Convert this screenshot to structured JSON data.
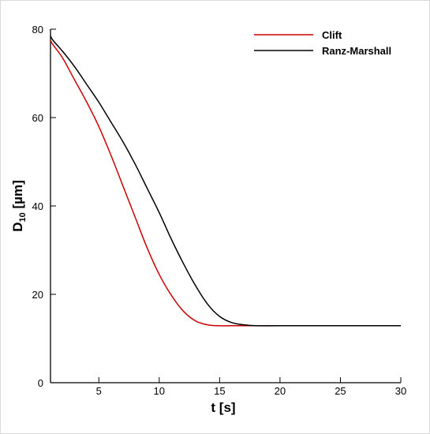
{
  "chart_data": {
    "type": "line",
    "xlabel": "t [s]",
    "ylabel_main": "D",
    "ylabel_sub": "10",
    "ylabel_unit": " [µm]",
    "xlim": [
      1,
      30
    ],
    "ylim": [
      0,
      80
    ],
    "xticks": [
      5,
      10,
      15,
      20,
      25,
      30
    ],
    "yticks": [
      0,
      20,
      40,
      60,
      80
    ],
    "xtick_labels": [
      "5",
      "10",
      "15",
      "20",
      "25",
      "30"
    ],
    "ytick_labels": [
      "0",
      "20",
      "40",
      "60",
      "80"
    ],
    "grid": false,
    "legend_position": "top-right",
    "series": [
      {
        "name": "Clift",
        "color": "#cc0000",
        "x": [
          1.0,
          1.2,
          2,
          3,
          4,
          5,
          6,
          7,
          8,
          9,
          10,
          11,
          12,
          13,
          14,
          15,
          16,
          17,
          18,
          20,
          25,
          30
        ],
        "y": [
          77.5,
          76.5,
          73.5,
          68.5,
          63.5,
          58,
          51.5,
          44.5,
          37.5,
          30.5,
          24.5,
          19.8,
          16.2,
          14.0,
          13.1,
          12.9,
          12.9,
          12.9,
          12.9,
          12.9,
          12.9,
          12.9
        ]
      },
      {
        "name": "Ranz-Marshall",
        "color": "#000000",
        "x": [
          1.0,
          1.2,
          2,
          3,
          4,
          5,
          6,
          7,
          8,
          9,
          10,
          11,
          12,
          13,
          14,
          15,
          16,
          17,
          18,
          20,
          25,
          30
        ],
        "y": [
          78.5,
          77.5,
          75.0,
          71.5,
          67.5,
          63.5,
          59.0,
          54.5,
          49.5,
          44.0,
          38.5,
          32.5,
          27.0,
          22.0,
          17.8,
          15.0,
          13.6,
          13.1,
          12.9,
          12.9,
          12.9,
          12.9
        ]
      }
    ]
  }
}
